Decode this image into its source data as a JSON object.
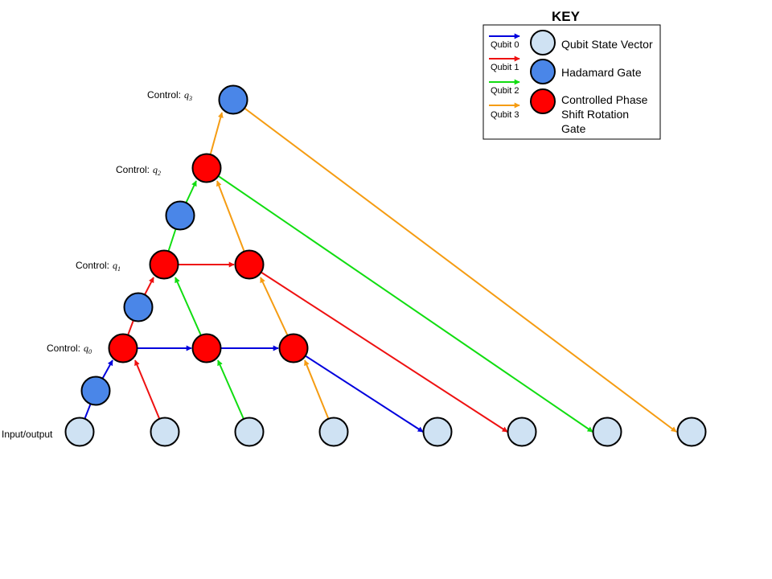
{
  "colors": {
    "qubit0": "#0000dd",
    "qubit1": "#ee1111",
    "qubit2": "#11dd11",
    "qubit3": "#f59c12",
    "state_vector": "#cfe2f3",
    "hadamard": "#4a86e8",
    "phase_gate": "#ff0000"
  },
  "labels": {
    "control_prefix": "Control:",
    "control_q0": "q",
    "control_q0_sub": "0",
    "control_q1": "q",
    "control_q1_sub": "1",
    "control_q2": "q",
    "control_q2_sub": "2",
    "control_q3": "q",
    "control_q3_sub": "3",
    "input_output": "Input/output"
  },
  "key": {
    "title": "KEY",
    "qubit0": "Qubit 0",
    "qubit1": "Qubit 1",
    "qubit2": "Qubit 2",
    "qubit3": "Qubit 3",
    "state_vector": "Qubit State Vector",
    "hadamard": "Hadamard Gate",
    "phase_line1": "Controlled Phase",
    "phase_line2": "Shift Rotation",
    "phase_line3": "Gate"
  }
}
